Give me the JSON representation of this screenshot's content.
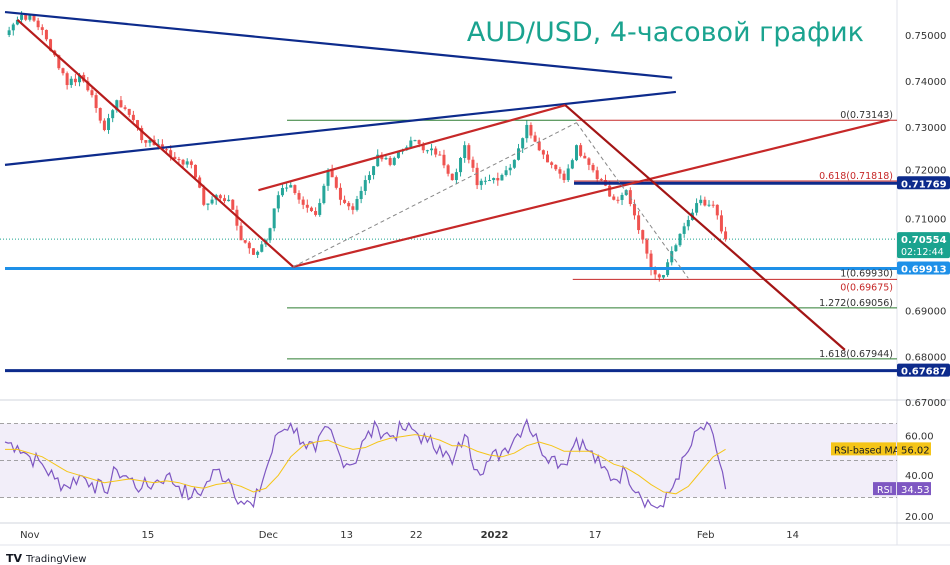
{
  "chart_data": {
    "type": "candlestick",
    "title": "AUD/USD, 4-часовой график",
    "price_axis": {
      "ylim": [
        0.665,
        0.757
      ],
      "ticks": [
        "0.75000",
        "0.74000",
        "0.73000",
        "0.72000",
        "0.71000",
        "0.69000",
        "0.68000",
        "0.67000"
      ]
    },
    "x_axis": {
      "range_bar_index": [
        0,
        72
      ],
      "ticks": [
        {
          "label": "Nov",
          "bar": 2.0
        },
        {
          "label": "15",
          "bar": 11.5
        },
        {
          "label": "Dec",
          "bar": 21.2
        },
        {
          "label": "13",
          "bar": 27.5
        },
        {
          "label": "22",
          "bar": 33.1
        },
        {
          "label": "2022",
          "bar": 39.4,
          "bold": true
        },
        {
          "label": "17",
          "bar": 47.5
        },
        {
          "label": "Feb",
          "bar": 56.4
        },
        {
          "label": "14",
          "bar": 63.4
        }
      ]
    },
    "closes": [
      0.75,
      0.7533,
      0.7544,
      0.7511,
      0.7456,
      0.7391,
      0.7413,
      0.7369,
      0.7293,
      0.7358,
      0.7326,
      0.7271,
      0.726,
      0.7249,
      0.7228,
      0.7217,
      0.713,
      0.7151,
      0.7141,
      0.7053,
      0.7021,
      0.7053,
      0.7151,
      0.7173,
      0.713,
      0.7108,
      0.7206,
      0.7141,
      0.7119,
      0.7184,
      0.7239,
      0.7217,
      0.7249,
      0.7271,
      0.7249,
      0.7239,
      0.7184,
      0.726,
      0.7173,
      0.7184,
      0.7195,
      0.7228,
      0.7304,
      0.7249,
      0.7217,
      0.7184,
      0.726,
      0.7217,
      0.7184,
      0.7141,
      0.7162,
      0.7075,
      0.6988,
      0.6977,
      0.7042,
      0.7097,
      0.7141,
      0.713,
      0.7055
    ],
    "colors": {
      "up": "#26a69a",
      "down": "#ef5350",
      "navy": "#0d2b8c",
      "blue": "#1e90e8",
      "red": "#b71c1c",
      "teal": "#1aa38f",
      "rsi": "#7e57c2",
      "rsi_ma": "#f5c518"
    },
    "trendlines": [
      {
        "name": "blue-upper-descending",
        "color": "#0d2b8c",
        "from": [
          0,
          0.755
        ],
        "to": [
          53.7,
          0.7407
        ]
      },
      {
        "name": "blue-lower-rising",
        "color": "#0d2b8c",
        "from": [
          0,
          0.7217
        ],
        "to": [
          54.0,
          0.7376
        ]
      },
      {
        "name": "red-descending-main",
        "color": "#b71c1c",
        "from": [
          1.0,
          0.7533
        ],
        "to": [
          23.2,
          0.6995
        ]
      },
      {
        "name": "red-channel-upper",
        "color": "#c62828",
        "from": [
          20.4,
          0.7162
        ],
        "to": [
          45.1,
          0.7347
        ]
      },
      {
        "name": "red-channel-lower",
        "color": "#c62828",
        "from": [
          23.2,
          0.6995
        ],
        "to": [
          71.2,
          0.7315
        ]
      },
      {
        "name": "red-descending-recent",
        "color": "#a31515",
        "from": [
          45.1,
          0.7347
        ],
        "to": [
          67.6,
          0.6814
        ]
      },
      {
        "name": "fib-dashed-up",
        "color": "#888888",
        "dashed": true,
        "from": [
          23.2,
          0.6995
        ],
        "to": [
          46.0,
          0.7309
        ]
      },
      {
        "name": "fib-dashed-down",
        "color": "#888888",
        "dashed": true,
        "from": [
          46.0,
          0.7309
        ],
        "to": [
          55.0,
          0.697
        ]
      }
    ],
    "levels": [
      {
        "name": "fib-0-0.73143-green",
        "price": 0.73143,
        "from_bar": 22.7,
        "to_bar": 46.0,
        "color": "#2e7d32",
        "width": 1
      },
      {
        "name": "fib-0-0.73143-red",
        "price": 0.73143,
        "from_bar": 46.0,
        "to_bar": 72,
        "color": "#c62828",
        "width": 1,
        "label": "0(0.73143)",
        "label_color": "#333"
      },
      {
        "name": "fib-0.618",
        "price": 0.71818,
        "from_bar": 45.8,
        "to_bar": 72,
        "color": "#c62828",
        "width": 1,
        "label": "0.618(0.71818)",
        "label_color": "#c62828"
      },
      {
        "name": "resistance-0.71769",
        "price": 0.71769,
        "from_bar": 45.8,
        "to_bar": 72,
        "color": "#0d2b8c",
        "width": 3
      },
      {
        "name": "support-0.69913",
        "price": 0.69913,
        "from_bar": 0,
        "to_bar": 72,
        "color": "#1e90e8",
        "width": 3
      },
      {
        "name": "fib-1",
        "price": 0.6993,
        "from_bar": 60,
        "to_bar": 72,
        "color": "#2e7d32",
        "width": 0,
        "label": "1(0.69930)",
        "label_color": "#333"
      },
      {
        "name": "fib-0-0.69675",
        "price": 0.69675,
        "from_bar": 45.7,
        "to_bar": 72,
        "color": "#c62828",
        "width": 1,
        "label": "0(0.69675)",
        "label_color": "#c62828"
      },
      {
        "name": "fib-1.272",
        "price": 0.69056,
        "from_bar": 22.7,
        "to_bar": 72,
        "color": "#2e7d32",
        "width": 1,
        "label": "1.272(0.69056)",
        "label_color": "#333"
      },
      {
        "name": "fib-1.618",
        "price": 0.67944,
        "from_bar": 22.7,
        "to_bar": 72,
        "color": "#2e7d32",
        "width": 1,
        "label": "1.618(0.67944)",
        "label_color": "#333"
      },
      {
        "name": "support-0.67687",
        "price": 0.67687,
        "from_bar": 0,
        "to_bar": 72,
        "color": "#0d2b8c",
        "width": 3
      }
    ],
    "price_boxes": [
      {
        "name": "resistance-price-box",
        "text": "0.71769",
        "price": 0.71769,
        "color": "#0d2b8c"
      },
      {
        "name": "current-price-box",
        "text": "0.70554",
        "sub": "02:12:44",
        "price": 0.70554,
        "color": "#1aa38f"
      },
      {
        "name": "support-price-box",
        "text": "0.69913",
        "price": 0.69913,
        "color": "#1e90e8"
      },
      {
        "name": "support-low-price-box",
        "text": "0.67687",
        "price": 0.67687,
        "color": "#0d2b8c"
      }
    ],
    "current_price": 0.70554,
    "rsi": {
      "ylim": [
        13,
        80
      ],
      "ticks": [
        "60.00",
        "40.00",
        "20.00"
      ],
      "bands": [
        70,
        30
      ],
      "values": [
        60,
        58,
        52,
        48,
        40,
        36,
        42,
        38,
        33,
        45,
        40,
        35,
        38,
        42,
        36,
        30,
        35,
        45,
        40,
        28,
        25,
        45,
        65,
        70,
        60,
        55,
        68,
        52,
        48,
        62,
        68,
        63,
        67,
        66,
        60,
        58,
        48,
        64,
        45,
        50,
        55,
        62,
        72,
        58,
        52,
        48,
        62,
        55,
        46,
        40,
        44,
        33,
        26,
        25,
        40,
        55,
        68,
        64,
        34.53
      ],
      "ma_values": [
        56,
        56,
        54,
        52,
        48,
        44,
        42,
        40,
        38,
        39,
        40,
        39,
        38,
        39,
        38,
        36,
        35,
        37,
        38,
        36,
        33,
        35,
        42,
        52,
        58,
        60,
        61,
        58,
        56,
        57,
        60,
        62,
        63,
        64,
        63,
        61,
        58,
        58,
        55,
        53,
        52,
        54,
        58,
        60,
        58,
        55,
        55,
        55,
        52,
        48,
        46,
        42,
        37,
        33,
        32,
        36,
        44,
        52,
        56.02
      ],
      "ma_label": "RSI-based MA",
      "ma_value_text": "56.02",
      "rsi_label": "RSI",
      "rsi_value_text": "34.53"
    }
  },
  "footer": {
    "brand": "TradingView"
  }
}
